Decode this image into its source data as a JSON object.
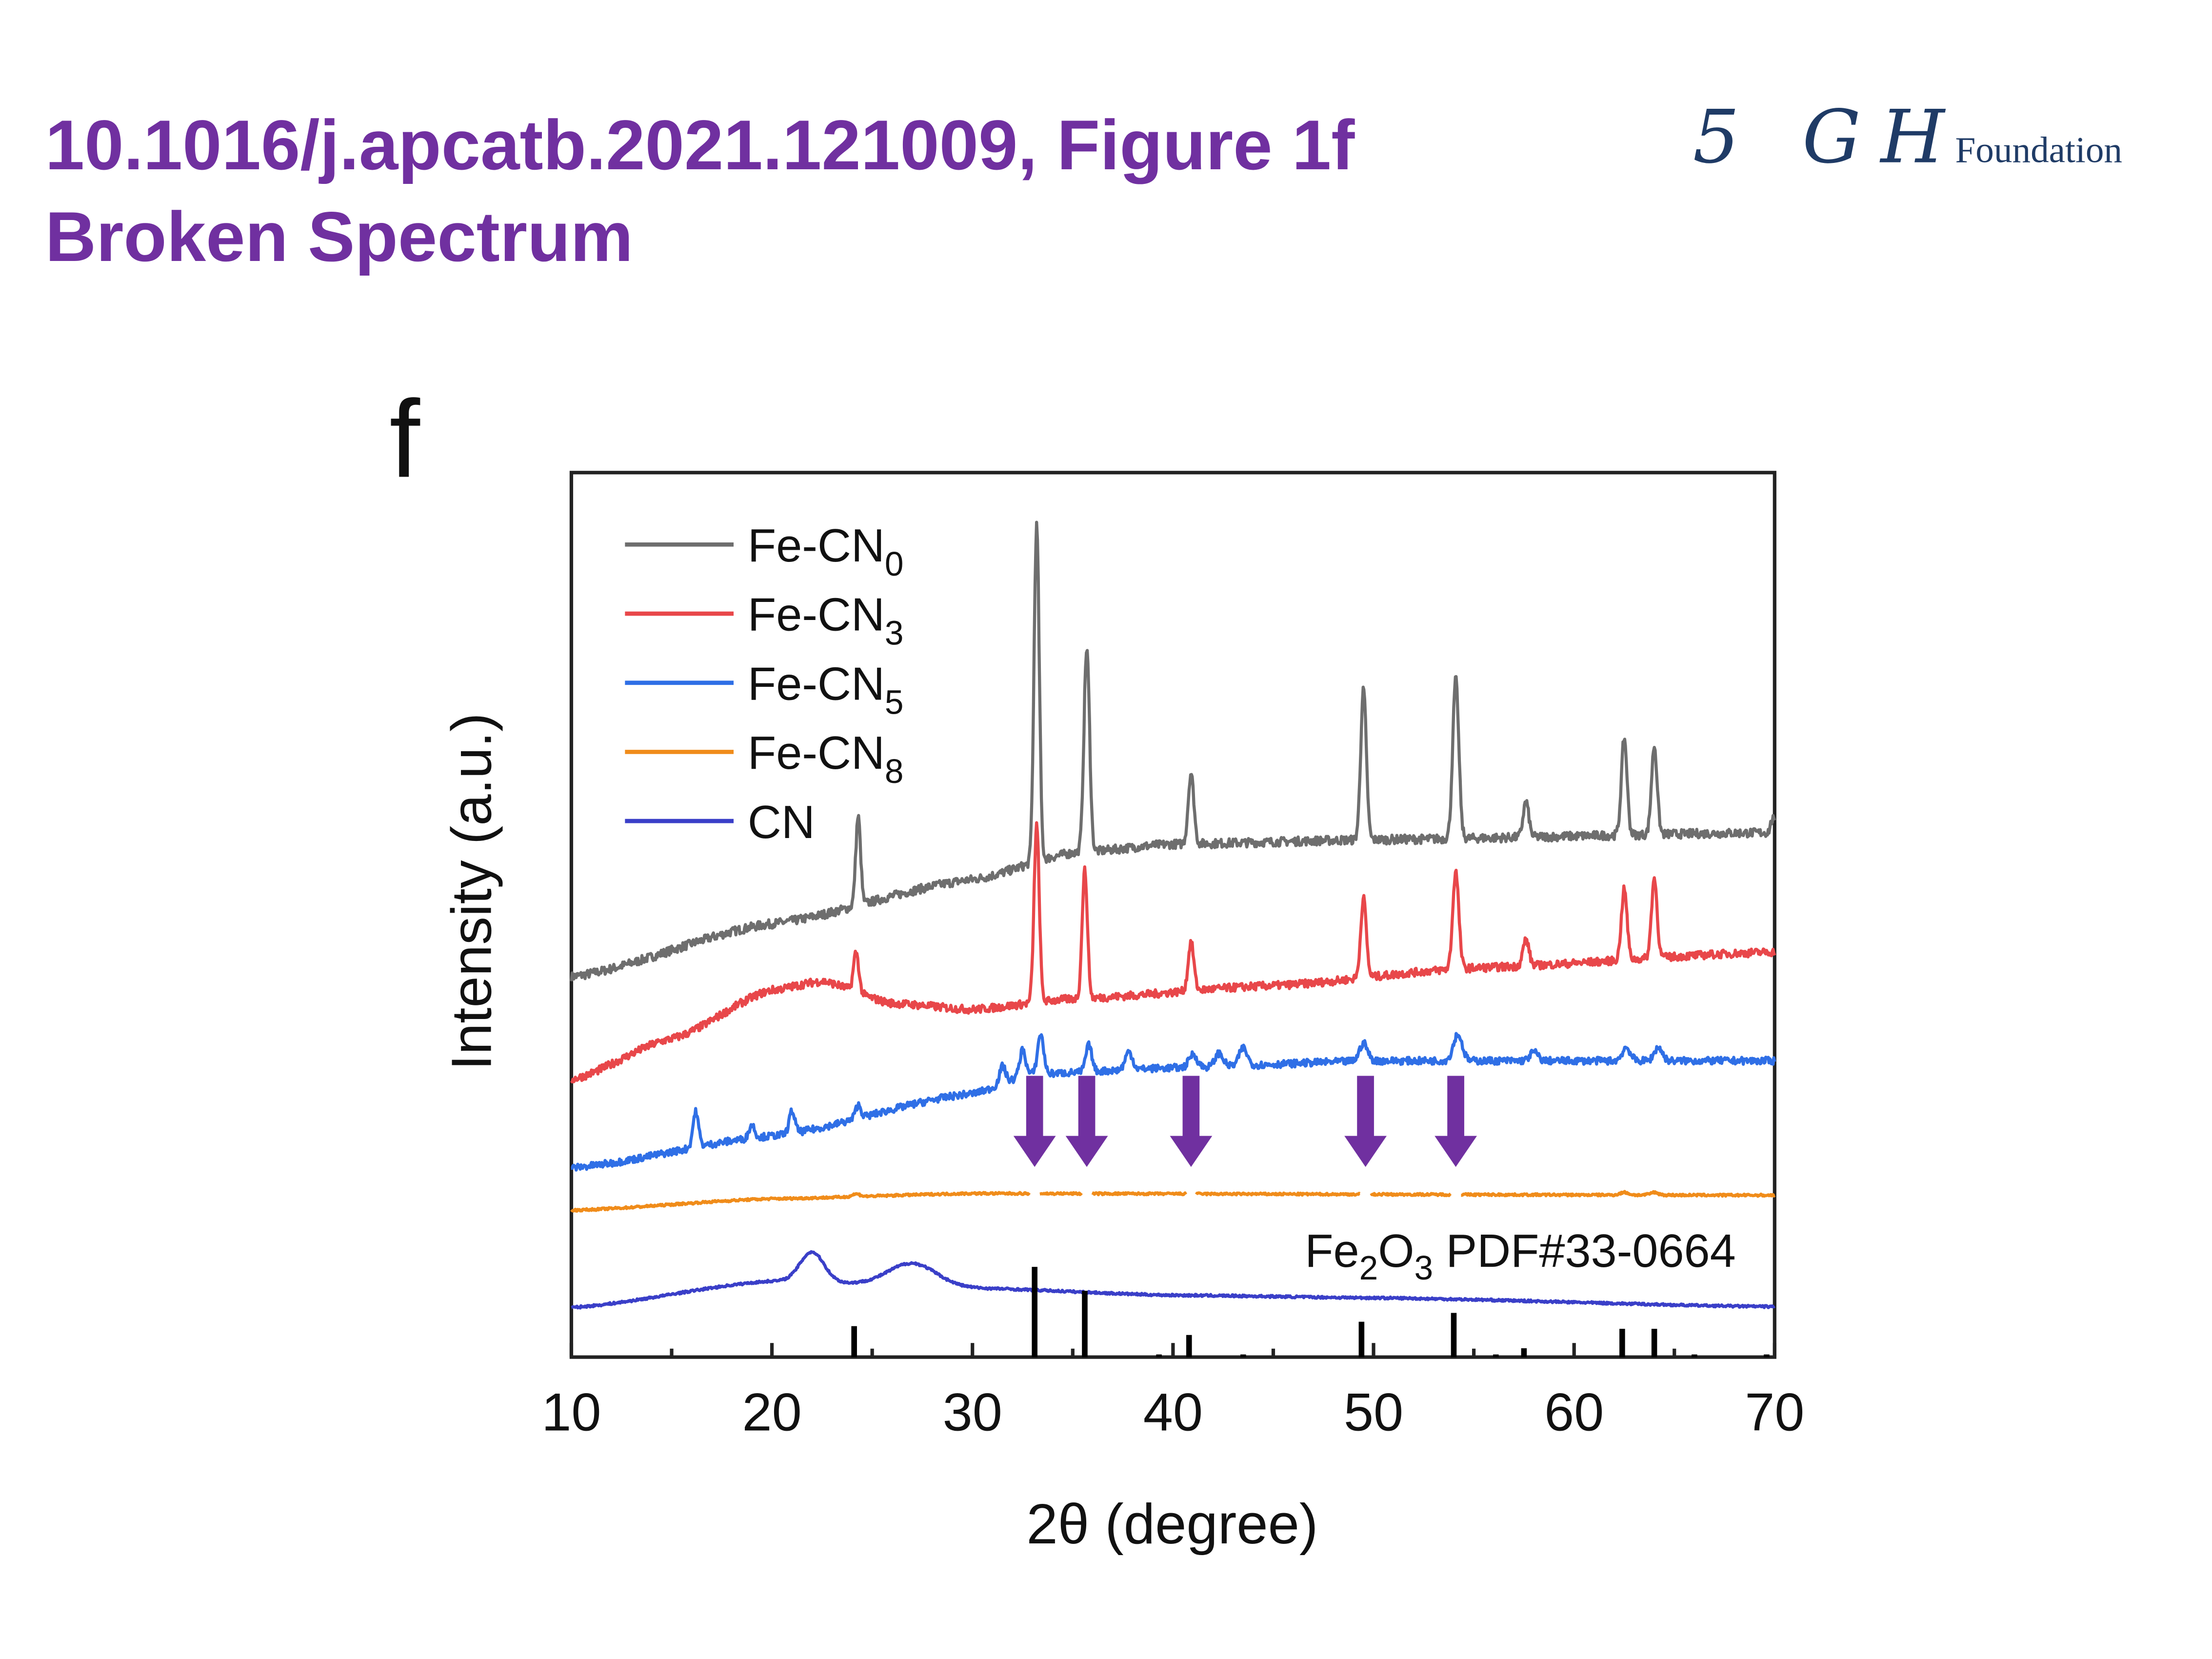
{
  "header": {
    "line1": "10.1016/j.apcatb.2021.121009, Figure 1f",
    "line2": "Broken Spectrum"
  },
  "logo": {
    "script": "5 GH",
    "word": "Foundation",
    "color": "#1f3b66"
  },
  "chart_data": {
    "type": "line",
    "panel_label": "f",
    "xlabel": "2θ (degree)",
    "ylabel": "Intensity (a.u.)",
    "xlim": [
      10,
      70
    ],
    "ylim": [
      0,
      100
    ],
    "xticks": [
      10,
      20,
      30,
      40,
      50,
      60,
      70
    ],
    "legend_position": "top-left",
    "series": [
      {
        "name": "Fe-CN",
        "sub": "0",
        "color": "#6e6e6e",
        "baseline": [
          [
            10,
            43
          ],
          [
            20,
            49
          ],
          [
            30,
            54
          ],
          [
            35,
            57
          ],
          [
            40,
            58
          ],
          [
            50,
            58.5
          ],
          [
            70,
            59.3
          ]
        ],
        "peaks": [
          [
            24.3,
            10,
            0.12
          ],
          [
            33.2,
            38,
            0.13
          ],
          [
            35.7,
            23,
            0.14
          ],
          [
            40.9,
            8,
            0.14
          ],
          [
            49.5,
            17,
            0.14
          ],
          [
            54.1,
            18,
            0.15
          ],
          [
            57.6,
            4,
            0.14
          ],
          [
            62.5,
            11,
            0.14
          ],
          [
            64.0,
            10,
            0.14
          ],
          [
            69.9,
            1.5,
            0.1
          ]
        ],
        "noise": 0.5
      },
      {
        "name": "Fe-CN",
        "sub": "3",
        "color": "#e8474a",
        "baseline": [
          [
            10,
            31.4
          ],
          [
            15,
            36
          ],
          [
            20,
            41.5
          ],
          [
            22.5,
            42.5
          ],
          [
            26,
            40
          ],
          [
            30,
            39.3
          ],
          [
            35,
            40.5
          ],
          [
            45,
            42
          ],
          [
            55,
            44
          ],
          [
            70,
            45.8
          ]
        ],
        "peaks": [
          [
            24.2,
            4.5,
            0.13
          ],
          [
            33.2,
            20,
            0.13
          ],
          [
            35.6,
            14.5,
            0.13
          ],
          [
            40.9,
            5.5,
            0.14
          ],
          [
            49.5,
            9,
            0.14
          ],
          [
            54.1,
            11,
            0.15
          ],
          [
            57.6,
            3,
            0.15
          ],
          [
            62.5,
            8,
            0.14
          ],
          [
            64.0,
            9,
            0.14
          ]
        ],
        "noise": 0.45
      },
      {
        "name": "Fe-CN",
        "sub": "5",
        "color": "#2f6fe6",
        "baseline": [
          [
            10,
            21.4
          ],
          [
            20,
            25
          ],
          [
            30,
            29.8
          ],
          [
            33,
            32
          ],
          [
            40,
            32.7
          ],
          [
            50,
            33.5
          ],
          [
            70,
            33.5
          ]
        ],
        "peaks": [
          [
            16.2,
            4,
            0.14
          ],
          [
            19,
            1.5,
            0.14
          ],
          [
            21,
            2.5,
            0.14
          ],
          [
            24.3,
            1.5,
            0.14
          ],
          [
            31.5,
            2,
            0.15
          ],
          [
            32.5,
            3,
            0.15
          ],
          [
            33.4,
            4.5,
            0.15
          ],
          [
            35.8,
            3,
            0.15
          ],
          [
            37.8,
            2,
            0.18
          ],
          [
            41,
            1.5,
            0.2
          ],
          [
            42.3,
            1.5,
            0.2
          ],
          [
            43.5,
            2,
            0.2
          ],
          [
            49.5,
            2,
            0.2
          ],
          [
            54.2,
            3,
            0.22
          ],
          [
            58,
            1,
            0.2
          ],
          [
            62.6,
            1.5,
            0.2
          ],
          [
            64.2,
            1.5,
            0.2
          ]
        ],
        "noise": 0.4
      },
      {
        "name": "Fe-CN",
        "sub": "8",
        "color": "#f08c1a",
        "baseline": [
          [
            10,
            16.6
          ],
          [
            20,
            17.9
          ],
          [
            30,
            18.5
          ],
          [
            70,
            18.3
          ]
        ],
        "peaks": [
          [
            24.2,
            0.3,
            0.2
          ],
          [
            62.5,
            0.3,
            0.2
          ],
          [
            64,
            0.3,
            0.2
          ]
        ],
        "noise": 0.12
      },
      {
        "name": "CN",
        "sub": "",
        "color": "#3a3fc8",
        "baseline": [
          [
            10,
            5.6
          ],
          [
            20,
            8.6
          ],
          [
            30,
            7.8
          ],
          [
            40,
            7
          ],
          [
            50,
            6.7
          ],
          [
            70,
            5.7
          ]
        ],
        "peaks": [
          [
            22,
            3.4,
            0.6
          ],
          [
            27,
            2.6,
            1.2
          ]
        ],
        "noise": 0.12
      }
    ],
    "gaps_fe_cn8": [
      33.1,
      35.7,
      40.9,
      49.6,
      54.1
    ],
    "reference": {
      "label": "Fe",
      "sub1": "2",
      "mid": "O",
      "sub2": "3",
      "rest": " PDF#33-0664",
      "sticks": [
        [
          24.1,
          3.5
        ],
        [
          33.1,
          10.2
        ],
        [
          35.6,
          7.5
        ],
        [
          39.3,
          0.3
        ],
        [
          40.8,
          2.5
        ],
        [
          43.5,
          0.3
        ],
        [
          49.4,
          4
        ],
        [
          54.0,
          5
        ],
        [
          56.1,
          0.3
        ],
        [
          57.5,
          1
        ],
        [
          62.4,
          3.2
        ],
        [
          64.0,
          3.2
        ],
        [
          66.0,
          0.3
        ],
        [
          69.6,
          0.3
        ]
      ]
    },
    "annotations": {
      "arrow_color": "#7030a0",
      "arrows_x": [
        33.1,
        35.7,
        40.9,
        49.6,
        54.1
      ],
      "arrow_top": 31.8,
      "arrow_tip": 21.5
    }
  }
}
